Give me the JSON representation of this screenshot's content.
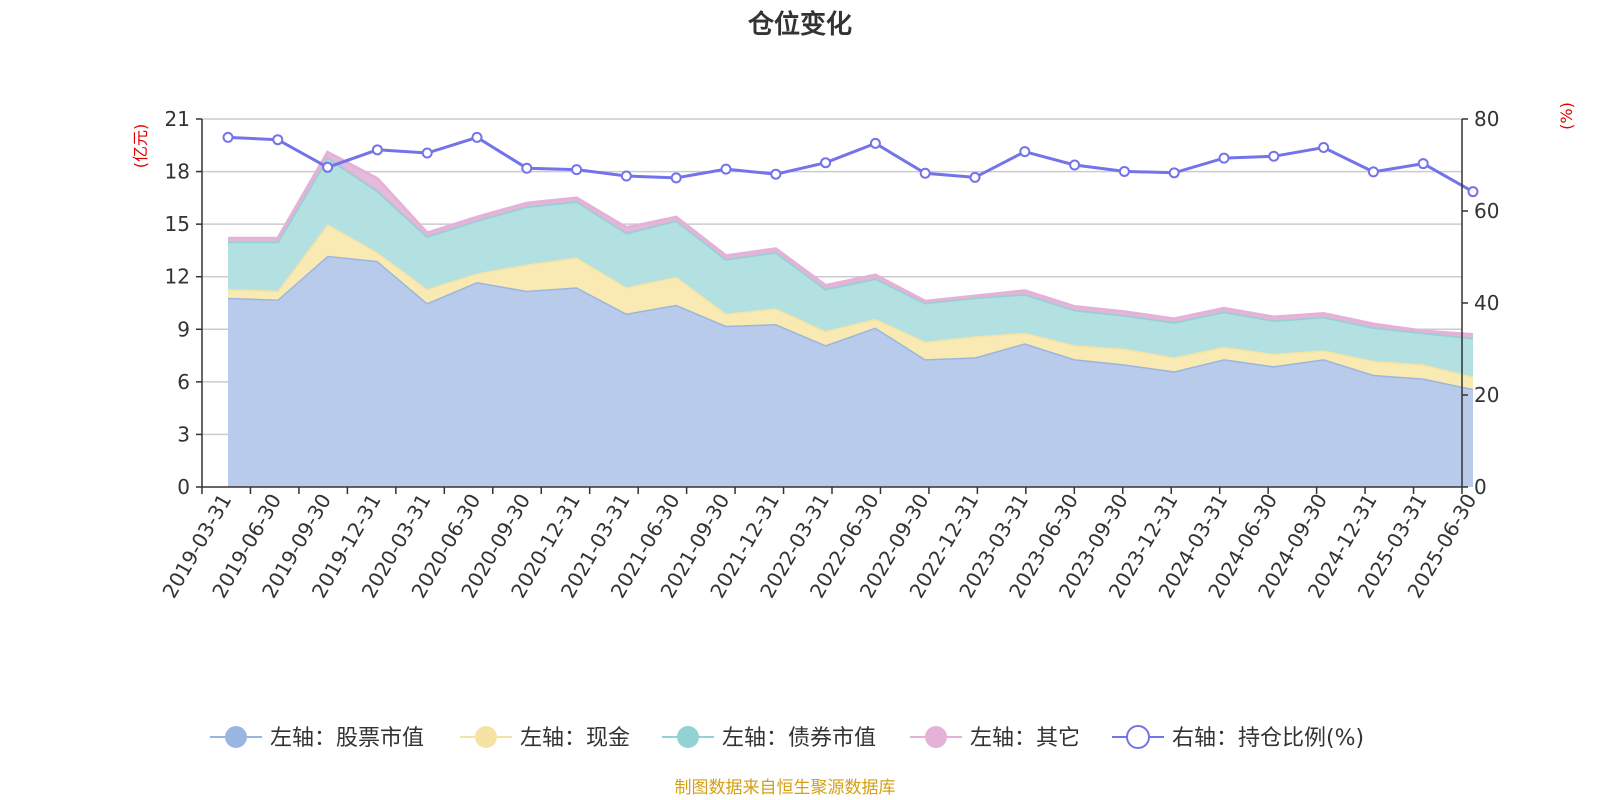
{
  "chart_data": {
    "type": "area",
    "title": "仓位变化",
    "left_axis_unit": "(亿元)",
    "right_axis_unit": "(%)",
    "categories": [
      "2019-03-31",
      "2019-06-30",
      "2019-09-30",
      "2019-12-31",
      "2020-03-31",
      "2020-06-30",
      "2020-09-30",
      "2020-12-31",
      "2021-03-31",
      "2021-06-30",
      "2021-09-30",
      "2021-12-31",
      "2022-03-31",
      "2022-06-30",
      "2022-09-30",
      "2022-12-31",
      "2023-03-31",
      "2023-06-30",
      "2023-09-30",
      "2023-12-31",
      "2024-03-31",
      "2024-06-30",
      "2024-09-30",
      "2024-12-31",
      "2025-03-31",
      "2025-06-30"
    ],
    "left_ylim": [
      0,
      21
    ],
    "left_ticks": [
      0,
      3,
      6,
      9,
      12,
      15,
      18,
      21
    ],
    "right_ylim": [
      0,
      80
    ],
    "right_ticks": [
      0,
      20,
      40,
      60,
      80
    ],
    "stacked_series": [
      {
        "name": "左轴：股票市值",
        "color": "#9ab6e0",
        "fill": "#b9cbea",
        "values": [
          10.8,
          10.7,
          13.2,
          12.9,
          10.5,
          11.7,
          11.2,
          11.4,
          9.9,
          10.4,
          9.2,
          9.3,
          8.1,
          9.1,
          7.3,
          7.4,
          8.2,
          7.3,
          7.0,
          6.6,
          7.3,
          6.9,
          7.3,
          6.4,
          6.2,
          5.6
        ]
      },
      {
        "name": "左轴：现金",
        "color": "#f6e3a3",
        "fill": "#f8eab2",
        "values": [
          0.5,
          0.5,
          1.8,
          0.5,
          0.8,
          0.5,
          1.5,
          1.7,
          1.5,
          1.6,
          0.7,
          0.9,
          0.8,
          0.5,
          1.0,
          1.2,
          0.6,
          0.8,
          0.9,
          0.8,
          0.7,
          0.7,
          0.5,
          0.8,
          0.8,
          0.7
        ]
      },
      {
        "name": "左轴：债券市值",
        "color": "#92d2d2",
        "fill": "#b3e0e0",
        "values": [
          2.7,
          2.8,
          3.8,
          3.5,
          3.0,
          3.0,
          3.3,
          3.2,
          3.1,
          3.2,
          3.1,
          3.2,
          2.4,
          2.3,
          2.2,
          2.2,
          2.2,
          2.0,
          1.9,
          2.0,
          2.0,
          1.9,
          1.9,
          1.9,
          1.8,
          2.2
        ]
      },
      {
        "name": "左轴：其它",
        "color": "#e4b2d8",
        "fill": "#e4b2d8",
        "values": [
          0.2,
          0.2,
          0.3,
          0.7,
          0.2,
          0.2,
          0.2,
          0.2,
          0.3,
          0.2,
          0.2,
          0.2,
          0.2,
          0.2,
          0.1,
          0.1,
          0.2,
          0.2,
          0.2,
          0.2,
          0.2,
          0.2,
          0.2,
          0.2,
          0.1,
          0.2
        ]
      }
    ],
    "line_series": {
      "name": "右轴：持仓比例(%)",
      "color": "#7373ea",
      "values": [
        76,
        75.5,
        69.5,
        73.3,
        72.6,
        76,
        69.3,
        69,
        67.6,
        67.2,
        69.1,
        68,
        70.5,
        74.7,
        68.2,
        67.3,
        72.9,
        70,
        68.6,
        68.3,
        71.5,
        71.9,
        73.8,
        68.5,
        70.3,
        64.2
      ]
    },
    "legend_position": "bottom",
    "grid": true,
    "source_note": "制图数据来自恒生聚源数据库"
  }
}
